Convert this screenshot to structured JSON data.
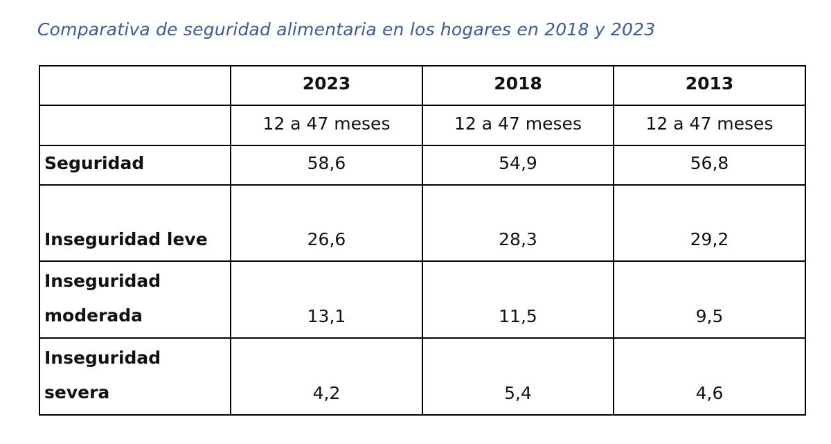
{
  "title": "Comparativa de seguridad alimentaria en los hogares en 2018 y 2023",
  "table": {
    "years": [
      "2023",
      "2018",
      "2013"
    ],
    "age_ranges": [
      "12 a 47 meses",
      "12 a 47 meses",
      "12 a 47 meses"
    ],
    "rows": [
      {
        "label": "Seguridad",
        "values": [
          "58,6",
          "54,9",
          "56,8"
        ]
      },
      {
        "label": "Inseguridad leve",
        "values": [
          "26,6",
          "28,3",
          "29,2"
        ]
      },
      {
        "label": "Inseguridad moderada",
        "values": [
          "13,1",
          "11,5",
          "9,5"
        ]
      },
      {
        "label": "Inseguridad severa",
        "values": [
          "4,2",
          "5,4",
          "4,6"
        ]
      }
    ]
  }
}
